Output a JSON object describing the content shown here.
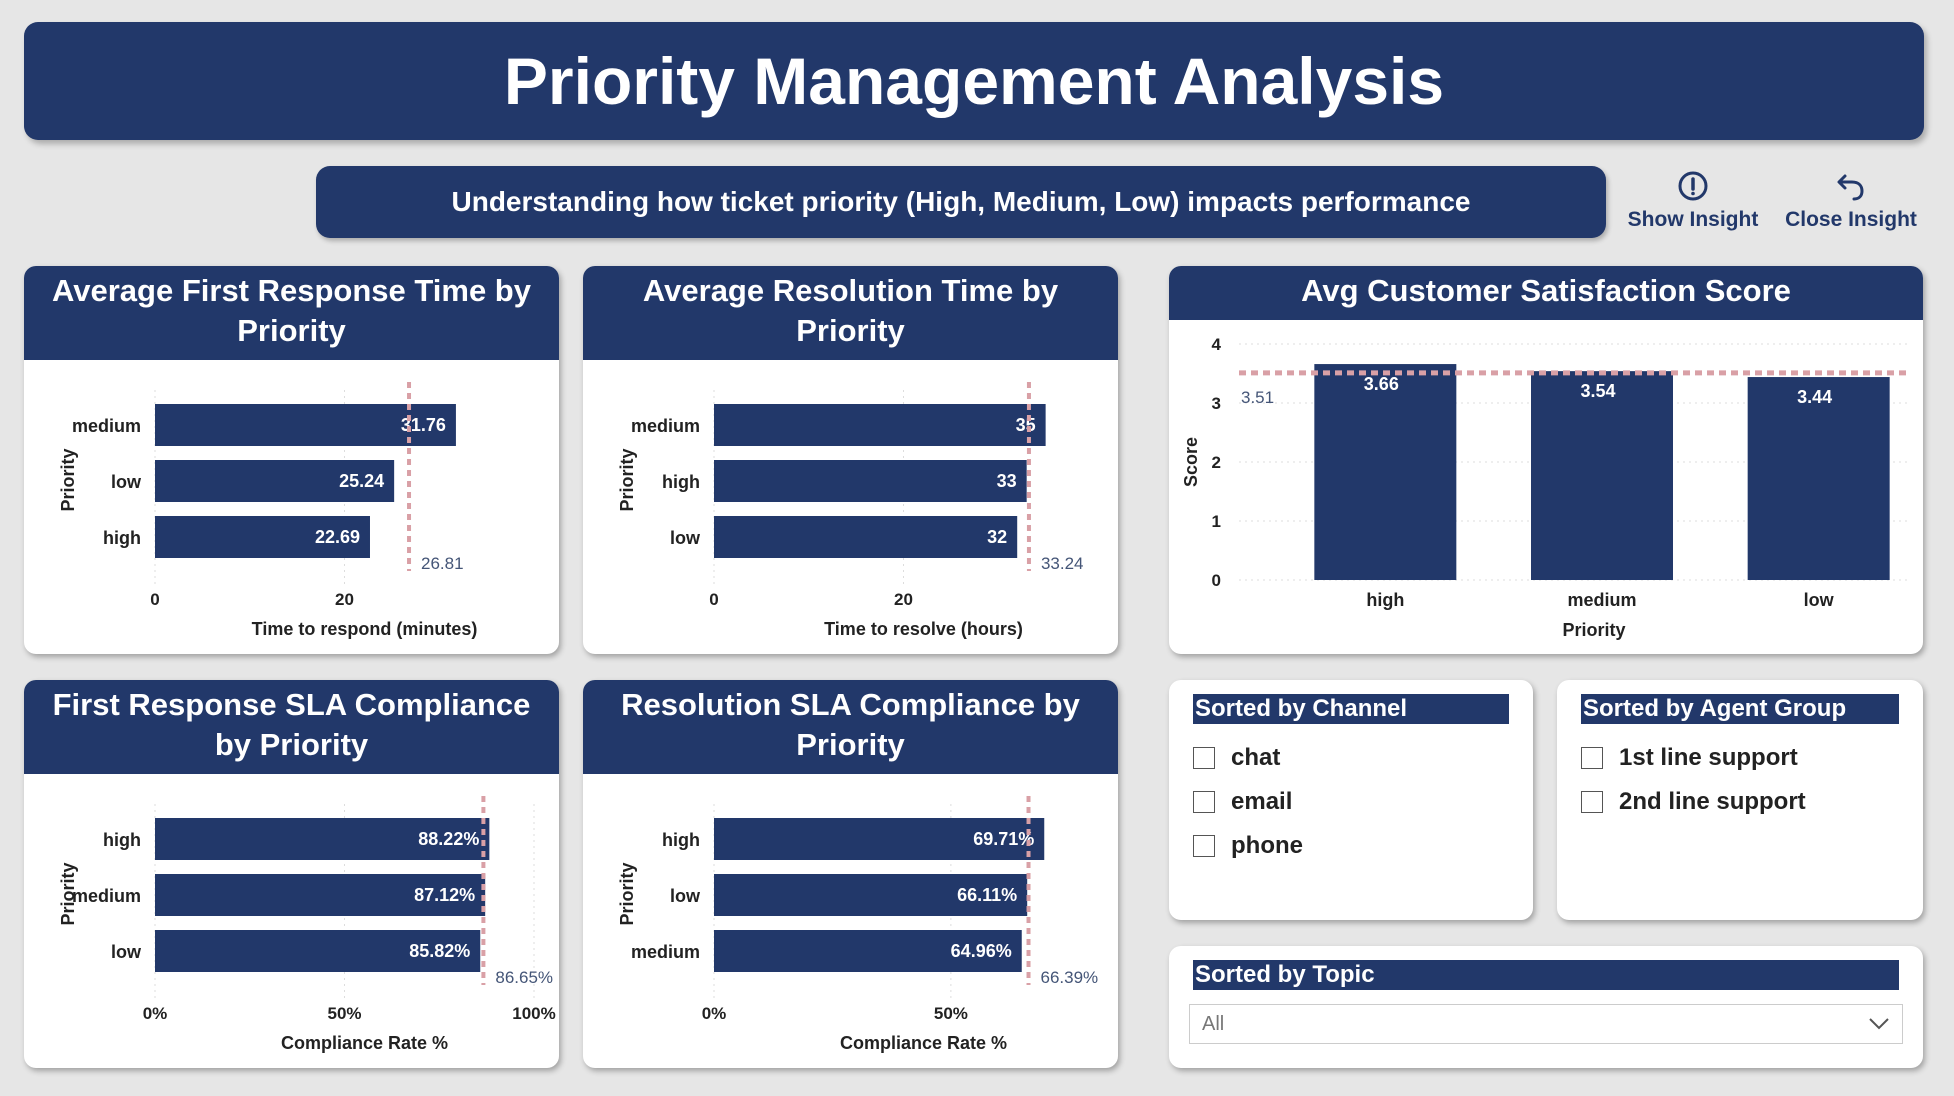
{
  "header": {
    "title": "Priority Management Analysis"
  },
  "subheader": {
    "text": "Understanding how ticket priority (High, Medium, Low) impacts performance"
  },
  "buttons": {
    "show_insight": "Show Insight",
    "close_insight": "Close Insight"
  },
  "colors": {
    "navy": "#22386a",
    "reference_line": "#d9a0a6",
    "background": "#e6e6e6"
  },
  "icons": {
    "show_insight": "info-circle-icon",
    "close_insight": "undo-arrow-icon",
    "dropdown": "chevron-down-icon"
  },
  "charts": {
    "first_response": {
      "title": "Average First Response Time by Priority"
    },
    "resolution_time": {
      "title": "Average Resolution Time by Priority"
    },
    "csat": {
      "title": "Avg Customer Satisfaction Score"
    },
    "fr_sla": {
      "title": "First Response SLA Compliance by Priority"
    },
    "res_sla": {
      "title": "Resolution SLA Compliance by Priority"
    }
  },
  "chart_data": [
    {
      "type": "bar",
      "orientation": "horizontal",
      "title": "Average First Response Time by Priority",
      "ylabel": "Priority",
      "xlabel": "Time to respond (minutes)",
      "categories": [
        "medium",
        "low",
        "high"
      ],
      "values": [
        31.76,
        25.24,
        22.69
      ],
      "value_labels": [
        "31.76",
        "25.24",
        "22.69"
      ],
      "xlim": [
        0,
        40
      ],
      "xticks": [
        0,
        20
      ],
      "tick_labels": [
        "0",
        "20"
      ],
      "reference_line": {
        "value": 26.81,
        "label": "26.81"
      }
    },
    {
      "type": "bar",
      "orientation": "horizontal",
      "title": "Average Resolution Time by Priority",
      "ylabel": "Priority",
      "xlabel": "Time to resolve (hours)",
      "categories": [
        "medium",
        "high",
        "low"
      ],
      "values": [
        35,
        33,
        32
      ],
      "value_labels": [
        "35",
        "33",
        "32"
      ],
      "xlim": [
        0,
        40
      ],
      "xticks": [
        0,
        20
      ],
      "tick_labels": [
        "0",
        "20"
      ],
      "reference_line": {
        "value": 33.24,
        "label": "33.24"
      }
    },
    {
      "type": "bar",
      "orientation": "vertical",
      "title": "Avg Customer Satisfaction Score",
      "ylabel": "Score",
      "xlabel": "Priority",
      "categories": [
        "high",
        "medium",
        "low"
      ],
      "values": [
        3.66,
        3.54,
        3.44
      ],
      "value_labels": [
        "3.66",
        "3.54",
        "3.44"
      ],
      "ylim": [
        0,
        4
      ],
      "yticks": [
        0,
        1,
        2,
        3,
        4
      ],
      "tick_labels": [
        "0",
        "1",
        "2",
        "3",
        "4"
      ],
      "reference_line": {
        "value": 3.51,
        "label": "3.51"
      }
    },
    {
      "type": "bar",
      "orientation": "horizontal",
      "title": "First Response SLA Compliance by Priority",
      "ylabel": "Priority",
      "xlabel": "Compliance Rate %",
      "categories": [
        "high",
        "medium",
        "low"
      ],
      "values": [
        88.22,
        87.12,
        85.82
      ],
      "value_labels": [
        "88.22%",
        "87.12%",
        "85.82%"
      ],
      "xlim": [
        0,
        100
      ],
      "xticks": [
        0,
        50,
        100
      ],
      "tick_labels": [
        "0%",
        "50%",
        "100%"
      ],
      "reference_line": {
        "value": 86.65,
        "label": "86.65%"
      }
    },
    {
      "type": "bar",
      "orientation": "horizontal",
      "title": "Resolution SLA Compliance by Priority",
      "ylabel": "Priority",
      "xlabel": "Compliance Rate %",
      "categories": [
        "high",
        "low",
        "medium"
      ],
      "values": [
        69.71,
        66.11,
        64.96
      ],
      "value_labels": [
        "69.71%",
        "66.11%",
        "64.96%"
      ],
      "xlim": [
        0,
        80
      ],
      "xticks": [
        0,
        50
      ],
      "tick_labels": [
        "0%",
        "50%"
      ],
      "reference_line": {
        "value": 66.39,
        "label": "66.39%"
      }
    }
  ],
  "slicers": {
    "channel": {
      "title": "Sorted by Channel",
      "items": [
        "chat",
        "email",
        "phone"
      ]
    },
    "agent_group": {
      "title": "Sorted by Agent Group",
      "items": [
        "1st line support",
        "2nd line support"
      ]
    },
    "topic": {
      "title": "Sorted by Topic",
      "selected": "All"
    }
  }
}
